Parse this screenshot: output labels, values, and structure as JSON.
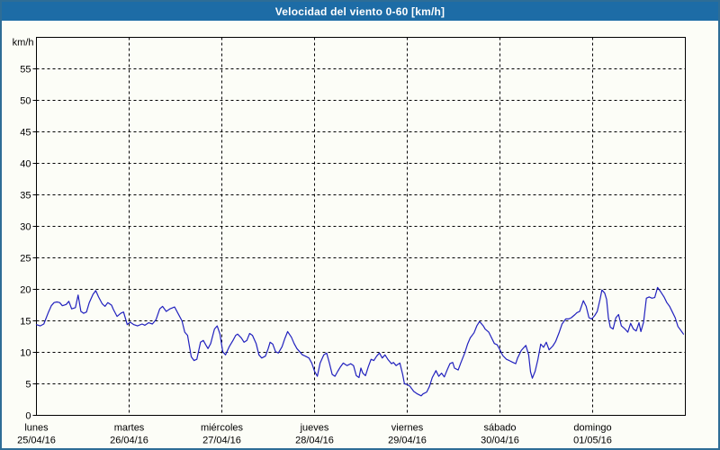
{
  "window": {
    "title": "Velocidad del viento 0-60 [km/h]"
  },
  "colors": {
    "window_border": "#2e6d96",
    "titlebar_bg": "#1d6ca6",
    "titlebar_text": "#ffffff",
    "background": "#fcfdf7",
    "axis": "#000000",
    "grid": "#000000",
    "line": "#2121be"
  },
  "chart_data": {
    "type": "line",
    "title": "Velocidad del viento 0-60 [km/h]",
    "ylabel": "km/h",
    "ylim": [
      0,
      60
    ],
    "yticks": [
      0,
      5,
      10,
      15,
      20,
      25,
      30,
      35,
      40,
      45,
      50,
      55
    ],
    "grid": "dashed",
    "legend": "none",
    "x_axis_days": [
      {
        "name": "lunes",
        "date": "25/04/16"
      },
      {
        "name": "martes",
        "date": "26/04/16"
      },
      {
        "name": "miércoles",
        "date": "27/04/16"
      },
      {
        "name": "jueves",
        "date": "28/04/16"
      },
      {
        "name": "viernes",
        "date": "29/04/16"
      },
      {
        "name": "sábado",
        "date": "30/04/16"
      },
      {
        "name": "domingo",
        "date": "01/05/16"
      }
    ],
    "series": [
      {
        "name": "wind-speed-km-h",
        "color": "#2121be",
        "points": [
          [
            0.0,
            14.4
          ],
          [
            0.04,
            14.2
          ],
          [
            0.08,
            14.5
          ],
          [
            0.13,
            16.4
          ],
          [
            0.16,
            17.4
          ],
          [
            0.19,
            17.9
          ],
          [
            0.22,
            18.0
          ],
          [
            0.25,
            17.9
          ],
          [
            0.28,
            17.4
          ],
          [
            0.32,
            17.6
          ],
          [
            0.35,
            18.1
          ],
          [
            0.38,
            16.9
          ],
          [
            0.42,
            17.1
          ],
          [
            0.45,
            19.1
          ],
          [
            0.48,
            16.5
          ],
          [
            0.51,
            16.2
          ],
          [
            0.54,
            16.4
          ],
          [
            0.57,
            17.9
          ],
          [
            0.61,
            19.2
          ],
          [
            0.64,
            19.8
          ],
          [
            0.67,
            18.8
          ],
          [
            0.71,
            17.7
          ],
          [
            0.74,
            17.3
          ],
          [
            0.77,
            17.9
          ],
          [
            0.81,
            17.5
          ],
          [
            0.83,
            16.8
          ],
          [
            0.87,
            15.7
          ],
          [
            0.91,
            16.2
          ],
          [
            0.94,
            16.4
          ],
          [
            0.98,
            14.4
          ],
          [
            1.01,
            14.8
          ],
          [
            1.05,
            14.4
          ],
          [
            1.09,
            14.2
          ],
          [
            1.14,
            14.5
          ],
          [
            1.17,
            14.3
          ],
          [
            1.21,
            14.7
          ],
          [
            1.25,
            14.5
          ],
          [
            1.29,
            15.2
          ],
          [
            1.33,
            16.9
          ],
          [
            1.36,
            17.3
          ],
          [
            1.4,
            16.5
          ],
          [
            1.44,
            16.9
          ],
          [
            1.49,
            17.2
          ],
          [
            1.53,
            16.1
          ],
          [
            1.57,
            15.0
          ],
          [
            1.6,
            13.2
          ],
          [
            1.63,
            12.7
          ],
          [
            1.67,
            9.3
          ],
          [
            1.7,
            8.7
          ],
          [
            1.73,
            8.9
          ],
          [
            1.77,
            11.6
          ],
          [
            1.8,
            11.9
          ],
          [
            1.83,
            11.1
          ],
          [
            1.85,
            10.6
          ],
          [
            1.88,
            11.4
          ],
          [
            1.92,
            13.7
          ],
          [
            1.95,
            14.2
          ],
          [
            1.98,
            12.9
          ],
          [
            2.01,
            10.1
          ],
          [
            2.04,
            9.6
          ],
          [
            2.08,
            10.9
          ],
          [
            2.12,
            11.9
          ],
          [
            2.15,
            12.7
          ],
          [
            2.17,
            12.9
          ],
          [
            2.21,
            12.3
          ],
          [
            2.24,
            11.6
          ],
          [
            2.27,
            11.9
          ],
          [
            2.3,
            13.0
          ],
          [
            2.33,
            12.7
          ],
          [
            2.37,
            11.4
          ],
          [
            2.4,
            9.6
          ],
          [
            2.43,
            9.1
          ],
          [
            2.47,
            9.4
          ],
          [
            2.5,
            10.6
          ],
          [
            2.52,
            11.6
          ],
          [
            2.55,
            11.3
          ],
          [
            2.58,
            10.1
          ],
          [
            2.61,
            9.9
          ],
          [
            2.65,
            10.9
          ],
          [
            2.68,
            12.2
          ],
          [
            2.71,
            13.3
          ],
          [
            2.75,
            12.4
          ],
          [
            2.78,
            11.4
          ],
          [
            2.81,
            10.6
          ],
          [
            2.84,
            10.1
          ],
          [
            2.87,
            9.6
          ],
          [
            2.9,
            9.4
          ],
          [
            2.94,
            9.1
          ],
          [
            2.97,
            8.3
          ],
          [
            3.0,
            7.0
          ],
          [
            3.03,
            6.2
          ],
          [
            3.06,
            8.3
          ],
          [
            3.1,
            9.6
          ],
          [
            3.13,
            9.9
          ],
          [
            3.16,
            8.3
          ],
          [
            3.19,
            6.5
          ],
          [
            3.22,
            6.2
          ],
          [
            3.25,
            7.0
          ],
          [
            3.28,
            7.7
          ],
          [
            3.31,
            8.3
          ],
          [
            3.35,
            7.9
          ],
          [
            3.39,
            8.2
          ],
          [
            3.42,
            7.9
          ],
          [
            3.45,
            6.3
          ],
          [
            3.48,
            6.0
          ],
          [
            3.5,
            7.5
          ],
          [
            3.52,
            6.7
          ],
          [
            3.55,
            6.3
          ],
          [
            3.58,
            7.7
          ],
          [
            3.61,
            8.9
          ],
          [
            3.64,
            8.7
          ],
          [
            3.67,
            9.4
          ],
          [
            3.7,
            9.9
          ],
          [
            3.73,
            9.1
          ],
          [
            3.76,
            9.6
          ],
          [
            3.79,
            8.9
          ],
          [
            3.83,
            8.2
          ],
          [
            3.85,
            8.4
          ],
          [
            3.88,
            7.9
          ],
          [
            3.92,
            8.3
          ],
          [
            3.95,
            6.5
          ],
          [
            3.97,
            5.0
          ],
          [
            4.0,
            4.9
          ],
          [
            4.03,
            4.6
          ],
          [
            4.07,
            3.8
          ],
          [
            4.11,
            3.4
          ],
          [
            4.15,
            3.1
          ],
          [
            4.17,
            3.4
          ],
          [
            4.21,
            3.7
          ],
          [
            4.24,
            4.6
          ],
          [
            4.27,
            6.0
          ],
          [
            4.31,
            7.1
          ],
          [
            4.34,
            6.2
          ],
          [
            4.37,
            6.7
          ],
          [
            4.4,
            6.1
          ],
          [
            4.43,
            7.2
          ],
          [
            4.46,
            8.2
          ],
          [
            4.49,
            8.4
          ],
          [
            4.51,
            7.5
          ],
          [
            4.55,
            7.2
          ],
          [
            4.58,
            8.4
          ],
          [
            4.62,
            9.9
          ],
          [
            4.65,
            11.3
          ],
          [
            4.68,
            12.3
          ],
          [
            4.72,
            13.1
          ],
          [
            4.75,
            14.2
          ],
          [
            4.78,
            14.9
          ],
          [
            4.82,
            14.2
          ],
          [
            4.84,
            13.7
          ],
          [
            4.88,
            13.2
          ],
          [
            4.91,
            12.3
          ],
          [
            4.94,
            11.4
          ],
          [
            4.97,
            11.2
          ],
          [
            5.0,
            10.4
          ],
          [
            5.03,
            9.5
          ],
          [
            5.07,
            8.9
          ],
          [
            5.1,
            8.7
          ],
          [
            5.14,
            8.4
          ],
          [
            5.17,
            8.2
          ],
          [
            5.19,
            9.1
          ],
          [
            5.23,
            10.3
          ],
          [
            5.26,
            10.8
          ],
          [
            5.28,
            11.1
          ],
          [
            5.31,
            9.6
          ],
          [
            5.33,
            6.9
          ],
          [
            5.35,
            5.9
          ],
          [
            5.38,
            7.0
          ],
          [
            5.41,
            8.9
          ],
          [
            5.44,
            11.3
          ],
          [
            5.47,
            10.8
          ],
          [
            5.5,
            11.6
          ],
          [
            5.53,
            10.4
          ],
          [
            5.57,
            11.0
          ],
          [
            5.6,
            11.7
          ],
          [
            5.64,
            13.2
          ],
          [
            5.67,
            14.5
          ],
          [
            5.71,
            15.3
          ],
          [
            5.74,
            15.3
          ],
          [
            5.77,
            15.5
          ],
          [
            5.81,
            16.0
          ],
          [
            5.83,
            16.3
          ],
          [
            5.86,
            16.5
          ],
          [
            5.9,
            18.2
          ],
          [
            5.93,
            17.3
          ],
          [
            5.96,
            15.5
          ],
          [
            5.99,
            15.3
          ],
          [
            6.02,
            15.8
          ],
          [
            6.05,
            16.5
          ],
          [
            6.08,
            18.4
          ],
          [
            6.1,
            19.9
          ],
          [
            6.13,
            19.4
          ],
          [
            6.15,
            18.4
          ],
          [
            6.17,
            15.5
          ],
          [
            6.19,
            14.0
          ],
          [
            6.22,
            13.7
          ],
          [
            6.25,
            15.5
          ],
          [
            6.28,
            16.0
          ],
          [
            6.31,
            14.2
          ],
          [
            6.35,
            13.7
          ],
          [
            6.38,
            13.2
          ],
          [
            6.41,
            14.6
          ],
          [
            6.44,
            13.7
          ],
          [
            6.47,
            13.4
          ],
          [
            6.5,
            14.7
          ],
          [
            6.52,
            13.3
          ],
          [
            6.55,
            14.8
          ],
          [
            6.58,
            18.6
          ],
          [
            6.61,
            18.8
          ],
          [
            6.64,
            18.6
          ],
          [
            6.67,
            18.7
          ],
          [
            6.7,
            20.3
          ],
          [
            6.73,
            19.7
          ],
          [
            6.77,
            18.8
          ],
          [
            6.8,
            17.9
          ],
          [
            6.83,
            17.3
          ],
          [
            6.86,
            16.4
          ],
          [
            6.89,
            15.5
          ],
          [
            6.92,
            14.1
          ],
          [
            6.95,
            13.5
          ],
          [
            6.98,
            12.9
          ]
        ]
      }
    ]
  }
}
